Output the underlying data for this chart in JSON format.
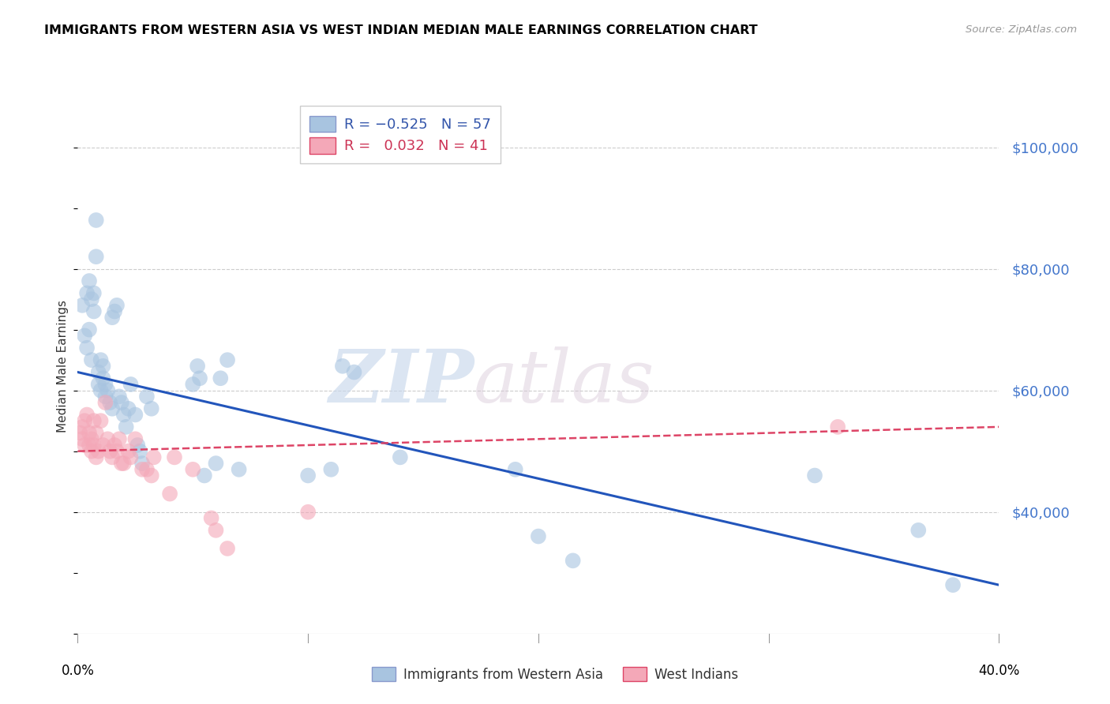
{
  "title": "IMMIGRANTS FROM WESTERN ASIA VS WEST INDIAN MEDIAN MALE EARNINGS CORRELATION CHART",
  "source": "Source: ZipAtlas.com",
  "ylabel": "Median Male Earnings",
  "yticks": [
    40000,
    60000,
    80000,
    100000
  ],
  "ytick_labels": [
    "$40,000",
    "$60,000",
    "$80,000",
    "$100,000"
  ],
  "xmin": 0.0,
  "xmax": 0.4,
  "ymin": 20000,
  "ymax": 108000,
  "legend_blue_label": "Immigrants from Western Asia",
  "legend_pink_label": "West Indians",
  "blue_color": "#A8C4E0",
  "pink_color": "#F4A8B8",
  "trend_blue_color": "#2255BB",
  "trend_pink_color": "#DD4466",
  "watermark_zip": "ZIP",
  "watermark_atlas": "atlas",
  "blue_scatter_x": [
    0.002,
    0.003,
    0.004,
    0.004,
    0.005,
    0.005,
    0.006,
    0.006,
    0.007,
    0.007,
    0.008,
    0.008,
    0.009,
    0.009,
    0.01,
    0.01,
    0.011,
    0.011,
    0.012,
    0.012,
    0.013,
    0.014,
    0.015,
    0.015,
    0.016,
    0.017,
    0.018,
    0.019,
    0.02,
    0.021,
    0.022,
    0.023,
    0.025,
    0.026,
    0.027,
    0.028,
    0.03,
    0.032,
    0.05,
    0.052,
    0.053,
    0.055,
    0.06,
    0.062,
    0.065,
    0.07,
    0.1,
    0.11,
    0.115,
    0.12,
    0.14,
    0.19,
    0.2,
    0.215,
    0.32,
    0.365,
    0.38
  ],
  "blue_scatter_y": [
    74000,
    69000,
    76000,
    67000,
    78000,
    70000,
    75000,
    65000,
    76000,
    73000,
    88000,
    82000,
    63000,
    61000,
    65000,
    60000,
    64000,
    62000,
    61000,
    59000,
    60000,
    58000,
    57000,
    72000,
    73000,
    74000,
    59000,
    58000,
    56000,
    54000,
    57000,
    61000,
    56000,
    51000,
    50000,
    48000,
    59000,
    57000,
    61000,
    64000,
    62000,
    46000,
    48000,
    62000,
    65000,
    47000,
    46000,
    47000,
    64000,
    63000,
    49000,
    47000,
    36000,
    32000,
    46000,
    37000,
    28000
  ],
  "pink_scatter_x": [
    0.001,
    0.002,
    0.002,
    0.003,
    0.003,
    0.004,
    0.005,
    0.005,
    0.006,
    0.006,
    0.007,
    0.007,
    0.008,
    0.008,
    0.009,
    0.01,
    0.011,
    0.012,
    0.013,
    0.014,
    0.015,
    0.016,
    0.017,
    0.018,
    0.019,
    0.02,
    0.022,
    0.023,
    0.025,
    0.028,
    0.03,
    0.032,
    0.033,
    0.04,
    0.042,
    0.05,
    0.058,
    0.06,
    0.065,
    0.1,
    0.33
  ],
  "pink_scatter_y": [
    53000,
    54000,
    52000,
    55000,
    51000,
    56000,
    53000,
    51000,
    52000,
    50000,
    55000,
    51000,
    49000,
    53000,
    50000,
    55000,
    51000,
    58000,
    52000,
    50000,
    49000,
    51000,
    50000,
    52000,
    48000,
    48000,
    50000,
    49000,
    52000,
    47000,
    47000,
    46000,
    49000,
    43000,
    49000,
    47000,
    39000,
    37000,
    34000,
    40000,
    54000
  ],
  "blue_trend_x0": 0.0,
  "blue_trend_x1": 0.4,
  "blue_trend_y0": 63000,
  "blue_trend_y1": 28000,
  "pink_trend_x0": 0.0,
  "pink_trend_x1": 0.4,
  "pink_trend_y0": 50000,
  "pink_trend_y1": 54000
}
